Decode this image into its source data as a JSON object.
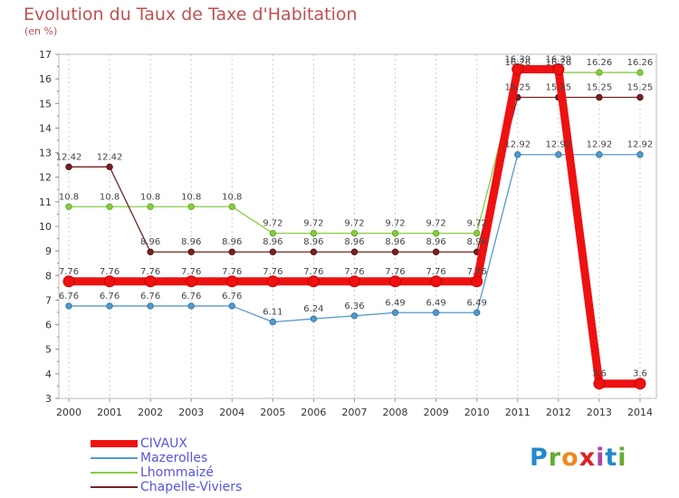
{
  "header": {
    "title": "Evolution du Taux de Taxe d'Habitation",
    "unit": "(en %)"
  },
  "logo": {
    "text": "Proxiti",
    "colors": [
      "#2288cc",
      "#66aa33",
      "#ee8822",
      "#dd2222",
      "#aa44aa",
      "#2288cc",
      "#66aa33"
    ]
  },
  "chart_data": {
    "type": "line",
    "title": "Evolution du Taux de Taxe d'Habitation",
    "ylabel": "(en %)",
    "xlabel": "",
    "x": [
      "2000",
      "2001",
      "2002",
      "2003",
      "2004",
      "2005",
      "2006",
      "2007",
      "2008",
      "2009",
      "2010",
      "2011",
      "2012",
      "2013",
      "2014"
    ],
    "ylim": [
      3,
      17
    ],
    "yticks": [
      3,
      4,
      5,
      6,
      7,
      8,
      9,
      10,
      11,
      12,
      13,
      14,
      15,
      16,
      17
    ],
    "grid": "vertical dashed",
    "legend_position": "bottom-left",
    "series": [
      {
        "name": "CIVAUX",
        "color": "#ee1111",
        "values": [
          7.76,
          7.76,
          7.76,
          7.76,
          7.76,
          7.76,
          7.76,
          7.76,
          7.76,
          7.76,
          7.76,
          16.39,
          16.39,
          3.6,
          3.6
        ]
      },
      {
        "name": "Mazerolles",
        "color": "#5599cc",
        "values": [
          6.76,
          6.76,
          6.76,
          6.76,
          6.76,
          6.11,
          6.24,
          6.36,
          6.49,
          6.49,
          6.49,
          12.92,
          12.92,
          12.92,
          12.92
        ]
      },
      {
        "name": "Lhommaizé",
        "color": "#88cc44",
        "values": [
          10.8,
          10.8,
          10.8,
          10.8,
          10.8,
          9.72,
          9.72,
          9.72,
          9.72,
          9.72,
          9.72,
          16.26,
          16.26,
          16.26,
          16.26
        ]
      },
      {
        "name": "Chapelle-Viviers",
        "color": "#772222",
        "values": [
          12.42,
          12.42,
          8.96,
          8.96,
          8.96,
          8.96,
          8.96,
          8.96,
          8.96,
          8.96,
          8.96,
          15.25,
          15.25,
          15.25,
          15.25
        ]
      }
    ]
  }
}
